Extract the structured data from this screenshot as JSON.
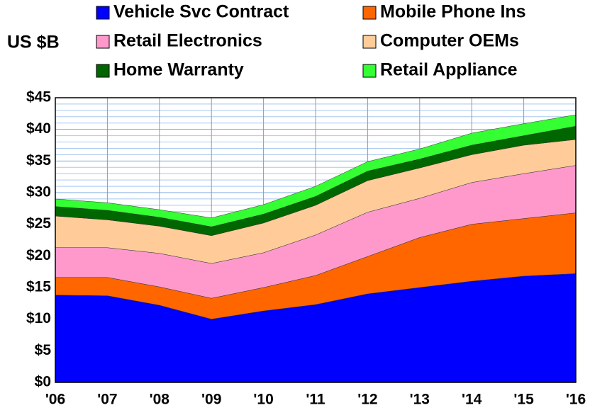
{
  "chart_data": {
    "type": "stacked_area",
    "y_label": "US $B",
    "categories": [
      "'06",
      "'07",
      "'08",
      "'09",
      "'10",
      "'11",
      "'12",
      "'13",
      "'14",
      "'15",
      "'16"
    ],
    "series": [
      {
        "name": "Vehicle Svc Contract",
        "color": "#0000ff",
        "values": [
          13.8,
          13.7,
          12.2,
          10,
          11.3,
          12.3,
          14,
          15,
          16,
          16.8,
          17.2
        ]
      },
      {
        "name": "Mobile Phone Ins",
        "color": "#ff6600",
        "values": [
          2.8,
          2.9,
          2.9,
          3.3,
          3.7,
          4.6,
          5.9,
          7.9,
          9,
          9.1,
          9.6
        ]
      },
      {
        "name": "Retail Electronics",
        "color": "#ff99cc",
        "values": [
          4.7,
          4.7,
          5.3,
          5.5,
          5.5,
          6.4,
          7,
          6.2,
          6.6,
          7.1,
          7.5
        ]
      },
      {
        "name": "Computer OEMs",
        "color": "#ffcc99",
        "values": [
          5,
          4.4,
          4.3,
          4.4,
          4.7,
          4.7,
          5,
          4.8,
          4.4,
          4.5,
          4.1
        ]
      },
      {
        "name": "Home Warranty",
        "color": "#006600",
        "values": [
          1.5,
          1.5,
          1.4,
          1.4,
          1.4,
          1.4,
          1.5,
          1.4,
          1.5,
          1.5,
          2.1
        ]
      },
      {
        "name": "Retail Appliance",
        "color": "#33ff33",
        "values": [
          1.2,
          1.2,
          1.2,
          1.4,
          1.5,
          1.6,
          1.5,
          1.6,
          1.9,
          1.9,
          1.8
        ]
      }
    ],
    "ylim": [
      0,
      45
    ],
    "yticks": [
      {
        "value": 0,
        "label": "$0"
      },
      {
        "value": 5,
        "label": "$5"
      },
      {
        "value": 10,
        "label": "$10"
      },
      {
        "value": 15,
        "label": "$15"
      },
      {
        "value": 20,
        "label": "$20"
      },
      {
        "value": 25,
        "label": "$25"
      },
      {
        "value": 30,
        "label": "$30"
      },
      {
        "value": 35,
        "label": "$35"
      },
      {
        "value": 40,
        "label": "$40"
      },
      {
        "value": 45,
        "label": "$45"
      }
    ],
    "grid": true
  }
}
